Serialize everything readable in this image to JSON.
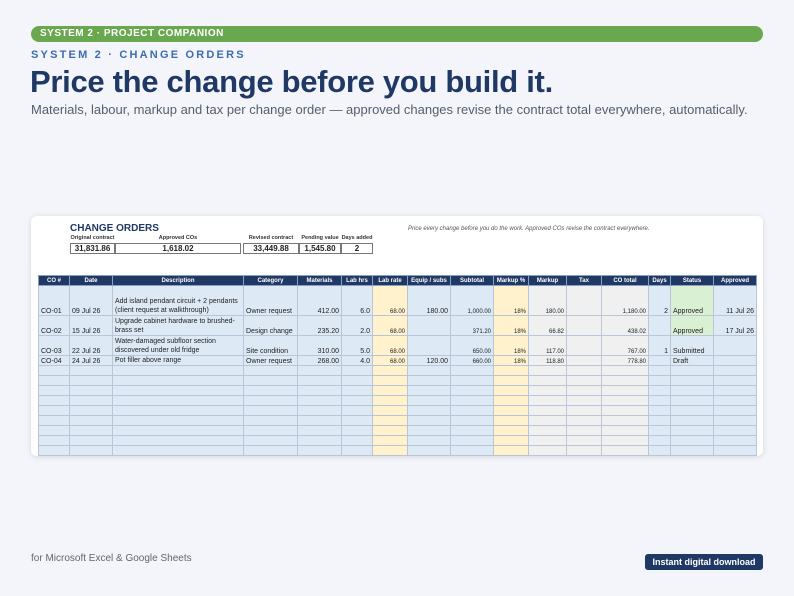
{
  "banner": "SYSTEM 2 · PROJECT COMPANION",
  "eyebrow": "SYSTEM 2 · CHANGE ORDERS",
  "headline": "Price the change before you build it.",
  "subhead": "Materials, labour, markup and tax per change order — approved changes revise the contract total everywhere, automatically.",
  "sheet": {
    "title": "CHANGE ORDERS",
    "note": "Price every change before you do the work. Approved COs revise the contract everywhere.",
    "summary": {
      "original_label": "Original contract",
      "original_value": "31,831.86",
      "approved_label": "Approved COs",
      "approved_value": "1,618.02",
      "revised_label": "Revised contract",
      "revised_value": "33,449.88",
      "pending_label": "Pending value",
      "pending_value": "1,545.80",
      "days_label": "Days added",
      "days_value": "2"
    },
    "headers": [
      "CO #",
      "Date",
      "Description",
      "Category",
      "Materials",
      "Lab hrs",
      "Lab rate",
      "Equip / subs",
      "Subtotal",
      "Markup %",
      "Markup",
      "Tax",
      "CO total",
      "Days",
      "Status",
      "Approved"
    ],
    "rows": [
      {
        "co": "CO-01",
        "date": "09 Jul 26",
        "desc": "Add island pendant circuit + 2 pendants (client request at walkthrough)",
        "category": "Owner request",
        "materials": "412.00",
        "lab_hrs": "6.0",
        "lab_rate": "68.00",
        "equip": "180.00",
        "subtotal": "1,000.00",
        "markup_pct": "18%",
        "markup": "180.00",
        "tax": "",
        "total": "1,180.00",
        "days": "2",
        "status": "Approved",
        "approved": "11 Jul 26"
      },
      {
        "co": "CO-02",
        "date": "15 Jul 26",
        "desc": "Upgrade cabinet hardware to brushed-brass set",
        "category": "Design change",
        "materials": "235.20",
        "lab_hrs": "2.0",
        "lab_rate": "68.00",
        "equip": "",
        "subtotal": "371.20",
        "markup_pct": "18%",
        "markup": "66.82",
        "tax": "",
        "total": "438.02",
        "days": "",
        "status": "Approved",
        "approved": "17 Jul 26"
      },
      {
        "co": "CO-03",
        "date": "22 Jul 26",
        "desc": "Water-damaged subfloor section discovered under old fridge",
        "category": "Site condition",
        "materials": "310.00",
        "lab_hrs": "5.0",
        "lab_rate": "68.00",
        "equip": "",
        "subtotal": "650.00",
        "markup_pct": "18%",
        "markup": "117.00",
        "tax": "",
        "total": "767.00",
        "days": "1",
        "status": "Submitted",
        "approved": ""
      },
      {
        "co": "CO-04",
        "date": "24 Jul 26",
        "desc": "Pot filler above range",
        "category": "Owner request",
        "materials": "268.00",
        "lab_hrs": "4.0",
        "lab_rate": "68.00",
        "equip": "120.00",
        "subtotal": "660.00",
        "markup_pct": "18%",
        "markup": "118.80",
        "tax": "",
        "total": "778.80",
        "days": "",
        "status": "Draft",
        "approved": ""
      }
    ]
  },
  "footer": {
    "left": "for Microsoft Excel & Google Sheets",
    "badge": "Instant digital download"
  }
}
